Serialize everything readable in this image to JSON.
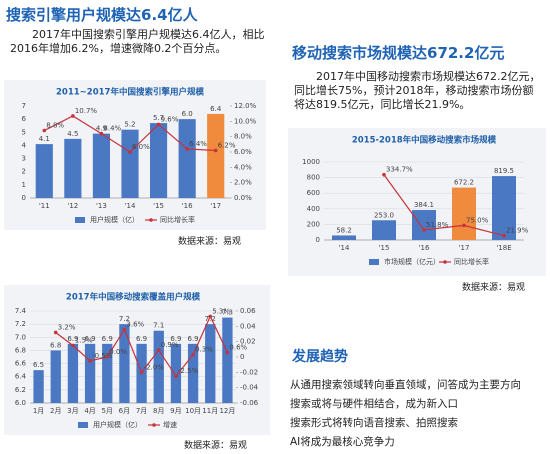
{
  "left_header": {
    "title": "搜索引擎用户规模达6.4亿人",
    "text": "2017年中国搜索引擎用户规模达6.4亿人，相比2016年增加6.2%，增速微降0.2个百分点。"
  },
  "right_header": {
    "title": "移动搜索市场规模达672.2亿元",
    "text": "2017年中国移动搜索市场规模达672.2亿元，同比增长75%，预计2018年，移动搜索市场份额将达819.5亿元，同比增长21.9%。"
  },
  "trends": {
    "title": "发展趋势",
    "items": [
      "从通用搜索领域转向垂直领域，问答成为主要方向",
      "搜索或将与硬件相结合，成为新入口",
      "搜索形式将转向语音搜索、拍照搜索",
      "AI将成为最核心竞争力"
    ]
  },
  "chart_data": [
    {
      "type": "bar",
      "title": "2011~2017年中国搜索引擎用户规模",
      "source": "数据来源：易观",
      "categories": [
        "'11",
        "'12",
        "'13",
        "'14",
        "'15",
        "'16",
        "'17"
      ],
      "series": [
        {
          "name": "用户规模（亿）",
          "type": "bar",
          "color": "#4a78c2",
          "colors": [
            "#4a78c2",
            "#4a78c2",
            "#4a78c2",
            "#4a78c2",
            "#4a78c2",
            "#4a78c2",
            "#f08a3c"
          ],
          "values": [
            4.1,
            4.5,
            4.9,
            5.2,
            5.7,
            6.0,
            6.4
          ],
          "value_labels": [
            "4.1",
            "4.5",
            "4.9",
            "5.2",
            "5.7",
            "6.0",
            "6.4"
          ]
        },
        {
          "name": "同比增长率",
          "type": "line",
          "axis": "y2",
          "color": "#c8323c",
          "values": [
            8.8,
            10.7,
            8.4,
            6.0,
            9.6,
            6.4,
            6.2
          ],
          "value_labels": [
            "8.8%",
            "10.7%",
            "8.4%",
            "6.0%",
            "9.6%",
            "6.4%",
            "6.2%"
          ]
        }
      ],
      "ylim": [
        0,
        7
      ],
      "yticks": [
        0,
        1,
        2,
        3,
        4,
        5,
        6,
        7
      ],
      "y2lim": [
        0,
        12
      ],
      "y2ticks": [
        {
          "value": 0,
          "label": "0.0%"
        },
        {
          "value": 2,
          "label": "2.0%"
        },
        {
          "value": 4,
          "label": "4.0%"
        },
        {
          "value": 6,
          "label": "6.0%"
        },
        {
          "value": 8,
          "label": "8.0%"
        },
        {
          "value": 10,
          "label": "10.0%"
        },
        {
          "value": 12,
          "label": "12.0%"
        }
      ],
      "grid": false
    },
    {
      "type": "bar",
      "title": "2015-2018年中国移动搜索市场规模",
      "source": "数据来源：易观",
      "categories": [
        "'14",
        "'15",
        "'16",
        "'17",
        "'18E"
      ],
      "series": [
        {
          "name": "市场规模（亿元）",
          "type": "bar",
          "color": "#4a78c2",
          "colors": [
            "#4a78c2",
            "#4a78c2",
            "#4a78c2",
            "#f08a3c",
            "#4a78c2"
          ],
          "values": [
            58.2,
            253.0,
            384.1,
            672.2,
            819.5
          ],
          "value_labels": [
            "58.2",
            "253.0",
            "384.1",
            "672.2",
            "819.5"
          ]
        },
        {
          "name": "同比增长率",
          "type": "line",
          "axis": "y2",
          "color": "#c8323c",
          "values": [
            null,
            334.7,
            51.8,
            75.0,
            21.9
          ],
          "value_labels": [
            null,
            "334.7%",
            "51.8%",
            "75.0%",
            "21.9%"
          ]
        }
      ],
      "ylim": [
        0,
        1000
      ],
      "yticks": [
        0,
        200,
        400,
        600,
        800,
        1000
      ],
      "y2lim": [
        0,
        400
      ],
      "grid": true
    },
    {
      "type": "bar",
      "title": "2017年中国移动搜索覆盖用户规模",
      "source": "数据来源：易观",
      "categories": [
        "1月",
        "2月",
        "3月",
        "4月",
        "5月",
        "6月",
        "7月",
        "8月",
        "9月",
        "10月",
        "11月",
        "12月"
      ],
      "series": [
        {
          "name": "用户规模（亿）",
          "type": "bar",
          "color": "#4a78c2",
          "values": [
            6.5,
            6.8,
            6.9,
            6.9,
            6.9,
            7.2,
            6.9,
            7.1,
            6.9,
            6.9,
            7.2,
            7.3
          ]
        },
        {
          "name": "增速",
          "type": "line",
          "axis": "y2",
          "color": "#c8323c",
          "values": [
            null,
            0.032,
            0.015,
            -0.005,
            0.0,
            0.036,
            -0.02,
            0.009,
            -0.025,
            0.003,
            0.053,
            0.006
          ],
          "value_labels": [
            null,
            "3.2%",
            "1.5%",
            "-0.5%",
            "0.0%",
            "3.6%",
            "-2.0%",
            "0.9%",
            "-2.5%",
            "0.3%",
            "5.3%",
            "0.6%"
          ]
        }
      ],
      "ylim": [
        6.0,
        7.4
      ],
      "yticks": [
        {
          "value": 6.0,
          "label": "6.0"
        },
        6.2,
        6.4,
        6.6,
        6.8,
        {
          "value": 7.0,
          "label": "7.0"
        },
        7.2,
        7.4
      ],
      "y2lim": [
        -0.06,
        0.06
      ],
      "y2ticks": [
        -0.06,
        -0.04,
        -0.02,
        0,
        0.02,
        0.04,
        0.06
      ],
      "grid": true
    }
  ]
}
